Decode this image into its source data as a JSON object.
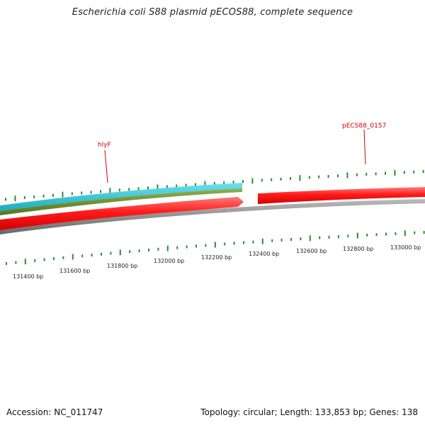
{
  "title": "Escherichia coli S88 plasmid pECOS88, complete sequence",
  "footer": {
    "accession": "Accession: NC_011747",
    "summary": "Topology: circular; Length: 133,853 bp; Genes: 138"
  },
  "ruler": {
    "labels": [
      "131400 bp",
      "131600 bp",
      "131800 bp",
      "132000 bp",
      "132200 bp",
      "132400 bp",
      "132600 bp",
      "132800 bp",
      "133000 bp"
    ],
    "tick_color": "#2e8b2e"
  },
  "features": {
    "backbone_color": "#888888",
    "gene_color": "#ff1a1a",
    "cds_color": "#22c4d8",
    "misc_color": "#6b8e23"
  },
  "gene_labels": [
    {
      "name": "hlyF"
    },
    {
      "name": "pECS88_0157"
    }
  ]
}
